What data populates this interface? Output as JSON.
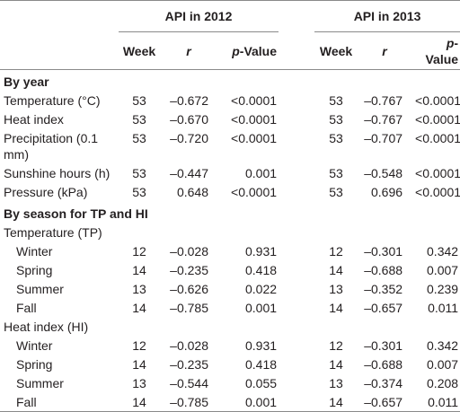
{
  "table": {
    "group_headers": [
      "API in 2012",
      "API in 2013"
    ],
    "column_headers": [
      "Week",
      "r",
      "p-Value",
      "Week",
      "r",
      "p-Value"
    ],
    "sections": [
      {
        "title": "By year",
        "rows": [
          {
            "label": "Temperature (°C)",
            "cells": [
              "53",
              "–0.672",
              "<0.0001",
              "53",
              "–0.767",
              "<0.0001"
            ]
          },
          {
            "label": "Heat index",
            "cells": [
              "53",
              "–0.670",
              "<0.0001",
              "53",
              "–0.767",
              "<0.0001"
            ]
          },
          {
            "label": "Precipitation (0.1 mm)",
            "cells": [
              "53",
              "–0.720",
              "<0.0001",
              "53",
              "–0.707",
              "<0.0001"
            ]
          },
          {
            "label": "Sunshine hours (h)",
            "cells": [
              "53",
              "–0.447",
              "0.001",
              "53",
              "–0.548",
              "<0.0001"
            ]
          },
          {
            "label": "Pressure (kPa)",
            "cells": [
              "53",
              "0.648",
              "<0.0001",
              "53",
              "0.696",
              "<0.0001"
            ]
          }
        ]
      },
      {
        "title": "By season for TP and HI",
        "groups": [
          {
            "label": "Temperature (TP)",
            "rows": [
              {
                "label": "Winter",
                "cells": [
                  "12",
                  "–0.028",
                  "0.931",
                  "12",
                  "–0.301",
                  "0.342"
                ]
              },
              {
                "label": "Spring",
                "cells": [
                  "14",
                  "–0.235",
                  "0.418",
                  "14",
                  "–0.688",
                  "0.007"
                ]
              },
              {
                "label": "Summer",
                "cells": [
                  "13",
                  "–0.626",
                  "0.022",
                  "13",
                  "–0.352",
                  "0.239"
                ]
              },
              {
                "label": "Fall",
                "cells": [
                  "14",
                  "–0.785",
                  "0.001",
                  "14",
                  "–0.657",
                  "0.011"
                ]
              }
            ]
          },
          {
            "label": "Heat index (HI)",
            "rows": [
              {
                "label": "Winter",
                "cells": [
                  "12",
                  "–0.028",
                  "0.931",
                  "12",
                  "–0.301",
                  "0.342"
                ]
              },
              {
                "label": "Spring",
                "cells": [
                  "14",
                  "–0.235",
                  "0.418",
                  "14",
                  "–0.688",
                  "0.007"
                ]
              },
              {
                "label": "Summer",
                "cells": [
                  "13",
                  "–0.544",
                  "0.055",
                  "13",
                  "–0.374",
                  "0.208"
                ]
              },
              {
                "label": "Fall",
                "cells": [
                  "14",
                  "–0.785",
                  "0.001",
                  "14",
                  "–0.657",
                  "0.011"
                ]
              }
            ]
          }
        ]
      }
    ]
  }
}
